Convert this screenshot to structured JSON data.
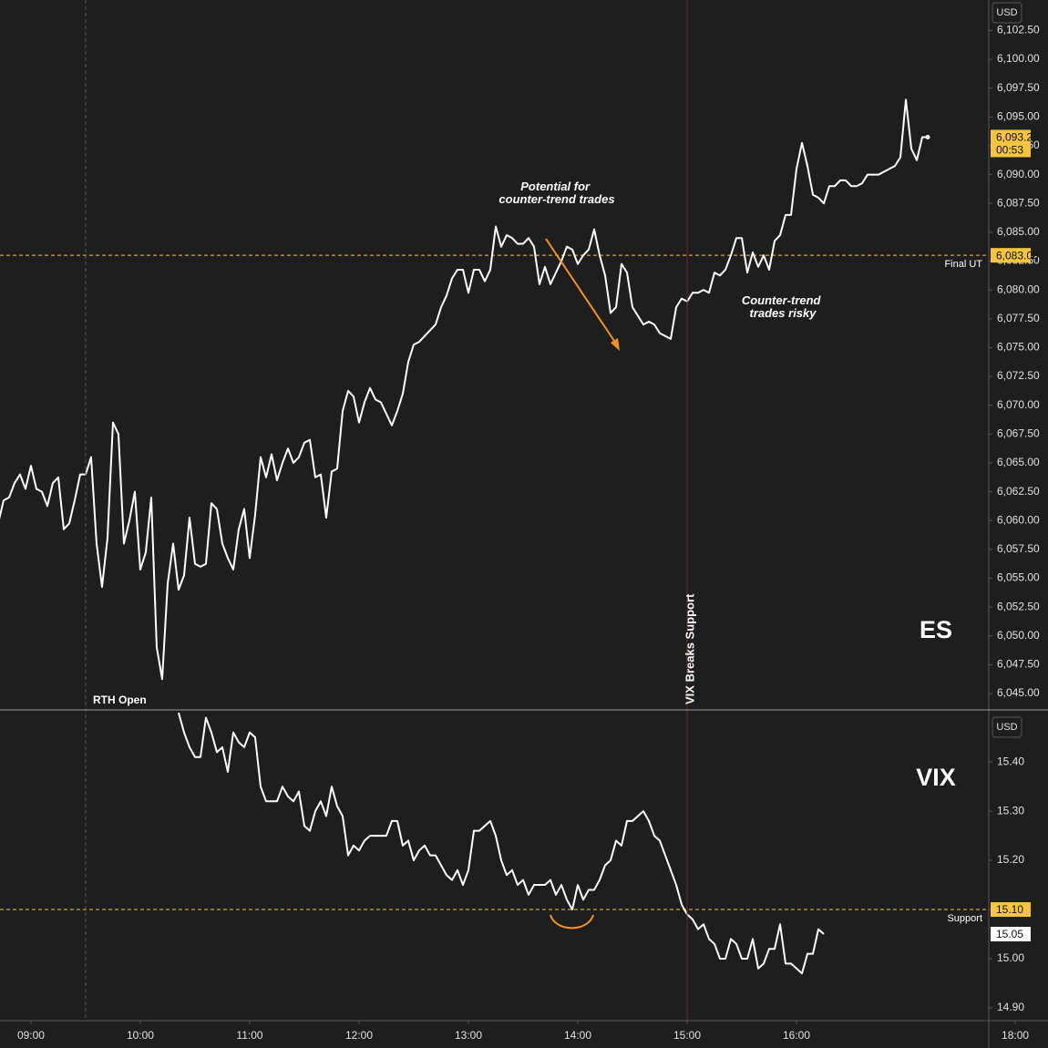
{
  "chart_data": [
    {
      "type": "line",
      "title": "ES",
      "currency": "USD",
      "x": [
        8.7,
        8.75,
        8.8,
        8.85,
        8.9,
        8.95,
        9,
        9.05,
        9.1,
        9.15,
        9.2,
        9.25,
        9.3,
        9.35,
        9.4,
        9.45,
        9.5,
        9.55,
        9.6,
        9.65,
        9.7,
        9.75,
        9.8,
        9.85,
        9.9,
        9.95,
        10,
        10.05,
        10.1,
        10.15,
        10.2,
        10.25,
        10.3,
        10.35,
        10.4,
        10.45,
        10.5,
        10.55,
        10.6,
        10.65,
        10.7,
        10.75,
        10.8,
        10.85,
        10.9,
        10.95,
        11,
        11.05,
        11.1,
        11.15,
        11.2,
        11.25,
        11.3,
        11.35,
        11.4,
        11.45,
        11.5,
        11.55,
        11.6,
        11.65,
        11.7,
        11.75,
        11.8,
        11.85,
        11.9,
        11.95,
        12,
        12.05,
        12.1,
        12.15,
        12.2,
        12.25,
        12.3,
        12.35,
        12.4,
        12.45,
        12.5,
        12.55,
        12.6,
        12.65,
        12.7,
        12.75,
        12.8,
        12.85,
        12.9,
        12.95,
        13,
        13.05,
        13.1,
        13.15,
        13.2,
        13.25,
        13.3,
        13.35,
        13.4,
        13.45,
        13.5,
        13.55,
        13.6,
        13.65,
        13.7,
        13.75,
        13.8,
        13.85,
        13.9,
        13.95,
        14,
        14.05,
        14.1,
        14.15,
        14.2,
        14.25,
        14.3,
        14.35,
        14.4,
        14.45,
        14.5,
        14.55,
        14.6,
        14.65,
        14.7,
        14.75,
        14.8,
        14.85,
        14.9,
        14.95,
        15,
        15.05,
        15.1,
        15.15,
        15.2,
        15.25,
        15.3,
        15.35,
        15.4,
        15.45,
        15.5,
        15.55,
        15.6,
        15.65,
        15.7,
        15.75,
        15.8,
        15.85,
        15.9,
        15.95,
        16,
        16.05,
        16.1,
        16.15,
        16.2,
        16.25,
        16.3,
        16.35,
        16.4,
        16.45,
        16.5,
        16.55,
        16.6,
        16.65,
        16.7,
        16.75,
        16.8,
        16.85,
        16.9,
        16.95,
        17,
        17.05,
        17.1,
        17.15,
        17.2
      ],
      "series": [
        {
          "color": "#ffffff",
          "values": [
            6059.75,
            6061.75,
            6062,
            6063.25,
            6064,
            6062.75,
            6064.75,
            6062.75,
            6062.5,
            6061.25,
            6063.25,
            6063.75,
            6059.25,
            6059.75,
            6061.75,
            6064,
            6064,
            6065.5,
            6058,
            6054.25,
            6058.5,
            6068.5,
            6067.5,
            6058,
            6060,
            6062.5,
            6055.75,
            6057.25,
            6062,
            6049,
            6046.25,
            6054.5,
            6058,
            6054,
            6055.25,
            6060.25,
            6056.25,
            6056,
            6056.25,
            6061.5,
            6061,
            6058,
            6056.75,
            6055.75,
            6059.25,
            6061,
            6056.75,
            6060.5,
            6065.5,
            6063.75,
            6065.75,
            6063.5,
            6065,
            6066.25,
            6065,
            6065.5,
            6066.75,
            6067,
            6063.75,
            6064,
            6060.25,
            6064.25,
            6064.5,
            6069.5,
            6071.25,
            6070.75,
            6068.5,
            6070.25,
            6071.5,
            6070.5,
            6070.25,
            6069.25,
            6068.25,
            6069.5,
            6071,
            6073.75,
            6075.25,
            6075.5,
            6076,
            6076.5,
            6077,
            6078.5,
            6079.5,
            6081,
            6081.75,
            6081.75,
            6079.75,
            6081.75,
            6081.75,
            6080.75,
            6081.75,
            6085.5,
            6083.75,
            6084.75,
            6084.5,
            6084,
            6084,
            6084.5,
            6083.75,
            6080.5,
            6082,
            6080.5,
            6081.5,
            6082.5,
            6083.75,
            6083.5,
            6082.25,
            6083,
            6083.5,
            6085.25,
            6083,
            6081.25,
            6078,
            6078.5,
            6082.25,
            6081.5,
            6078.5,
            6077.75,
            6077,
            6077.25,
            6077,
            6076.25,
            6076,
            6075.75,
            6078.5,
            6079.25,
            6079,
            6079.75,
            6079.75,
            6080,
            6079.75,
            6081.5,
            6081.25,
            6081.75,
            6083,
            6084.5,
            6084.5,
            6081.5,
            6083.25,
            6082,
            6083,
            6081.75,
            6084.25,
            6084.75,
            6086.5,
            6086.5,
            6090.5,
            6092.75,
            6090.75,
            6088.25,
            6088,
            6087.5,
            6089,
            6089,
            6089.5,
            6089.5,
            6089,
            6089,
            6089.25,
            6090,
            6090,
            6090,
            6090.25,
            6090.5,
            6090.75,
            6091.5,
            6096.5,
            6092.25,
            6091.25,
            6093.25,
            6093.25
          ]
        }
      ],
      "xlim": [
        8.717,
        17.758
      ],
      "ylim": [
        6043.66,
        6105.14
      ],
      "yticks": [
        {
          "value": 6045,
          "label": "6,045.00"
        },
        {
          "value": 6047.5,
          "label": "6,047.50"
        },
        {
          "value": 6050,
          "label": "6,050.00"
        },
        {
          "value": 6052.5,
          "label": "6,052.50"
        },
        {
          "value": 6055,
          "label": "6,055.00"
        },
        {
          "value": 6057.5,
          "label": "6,057.50"
        },
        {
          "value": 6060,
          "label": "6,060.00"
        },
        {
          "value": 6062.5,
          "label": "6,062.50"
        },
        {
          "value": 6065,
          "label": "6,065.00"
        },
        {
          "value": 6067.5,
          "label": "6,067.50"
        },
        {
          "value": 6070,
          "label": "6,070.00"
        },
        {
          "value": 6072.5,
          "label": "6,072.50"
        },
        {
          "value": 6075,
          "label": "6,075.00"
        },
        {
          "value": 6077.5,
          "label": "6,077.50"
        },
        {
          "value": 6080,
          "label": "6,080.00"
        },
        {
          "value": 6082.5,
          "label": "6,082.50"
        },
        {
          "value": 6085,
          "label": "6,085.00"
        },
        {
          "value": 6087.5,
          "label": "6,087.50"
        },
        {
          "value": 6090,
          "label": "6,090.00"
        },
        {
          "value": 6092.5,
          "label": "6,092.50"
        },
        {
          "value": 6095,
          "label": "6,095.00"
        },
        {
          "value": 6097.5,
          "label": "6,097.50"
        },
        {
          "value": 6100,
          "label": "6,100.00"
        },
        {
          "value": 6102.5,
          "label": "6,102.50"
        }
      ],
      "level": {
        "value": 6083,
        "label": "6,083.00",
        "name": "Final UT",
        "color": "#f5c542"
      },
      "last": {
        "value": 6093.25,
        "label": "6,093.25",
        "countdown": "00:53",
        "color": "#f5c542"
      },
      "markers": [
        {
          "x": 9.5,
          "label": "RTH Open",
          "color": "#555555"
        },
        {
          "x": 15,
          "label": "VIX Breaks Support",
          "color": "#6e2a2a"
        }
      ],
      "annotations": [
        [
          "Potential for",
          "counter-trend trades"
        ],
        [
          "Counter-trend",
          "trades risky"
        ]
      ]
    },
    {
      "type": "line",
      "title": "VIX",
      "currency": "USD",
      "x": [
        10.35,
        10.4,
        10.45,
        10.5,
        10.55,
        10.6,
        10.65,
        10.7,
        10.75,
        10.8,
        10.85,
        10.9,
        10.95,
        11,
        11.05,
        11.1,
        11.15,
        11.2,
        11.25,
        11.3,
        11.35,
        11.4,
        11.45,
        11.5,
        11.55,
        11.6,
        11.65,
        11.7,
        11.75,
        11.8,
        11.85,
        11.9,
        11.95,
        12,
        12.05,
        12.1,
        12.15,
        12.2,
        12.25,
        12.3,
        12.35,
        12.4,
        12.45,
        12.5,
        12.55,
        12.6,
        12.65,
        12.7,
        12.75,
        12.8,
        12.85,
        12.9,
        12.95,
        13,
        13.05,
        13.1,
        13.15,
        13.2,
        13.25,
        13.3,
        13.35,
        13.4,
        13.45,
        13.5,
        13.55,
        13.6,
        13.65,
        13.7,
        13.75,
        13.8,
        13.85,
        13.9,
        13.95,
        14,
        14.05,
        14.1,
        14.15,
        14.2,
        14.25,
        14.3,
        14.35,
        14.4,
        14.45,
        14.5,
        14.55,
        14.6,
        14.65,
        14.7,
        14.75,
        14.8,
        14.85,
        14.9,
        14.95,
        15,
        15.05,
        15.1,
        15.15,
        15.2,
        15.25,
        15.3,
        15.35,
        15.4,
        15.45,
        15.5,
        15.55,
        15.6,
        15.65,
        15.7,
        15.75,
        15.8,
        15.85,
        15.9,
        15.95,
        16,
        16.05,
        16.1,
        16.15,
        16.2,
        16.25
      ],
      "series": [
        {
          "color": "#ffffff",
          "values": [
            15.5,
            15.46,
            15.43,
            15.41,
            15.41,
            15.49,
            15.46,
            15.42,
            15.43,
            15.38,
            15.46,
            15.44,
            15.43,
            15.46,
            15.45,
            15.35,
            15.32,
            15.32,
            15.32,
            15.35,
            15.33,
            15.32,
            15.34,
            15.27,
            15.26,
            15.3,
            15.32,
            15.29,
            15.35,
            15.31,
            15.29,
            15.21,
            15.23,
            15.22,
            15.24,
            15.25,
            15.25,
            15.25,
            15.25,
            15.28,
            15.28,
            15.23,
            15.24,
            15.2,
            15.22,
            15.23,
            15.21,
            15.21,
            15.19,
            15.17,
            15.16,
            15.18,
            15.15,
            15.18,
            15.26,
            15.26,
            15.27,
            15.28,
            15.25,
            15.2,
            15.17,
            15.18,
            15.15,
            15.16,
            15.13,
            15.15,
            15.15,
            15.15,
            15.16,
            15.13,
            15.15,
            15.12,
            15.1,
            15.15,
            15.12,
            15.14,
            15.14,
            15.16,
            15.19,
            15.2,
            15.24,
            15.23,
            15.28,
            15.28,
            15.29,
            15.3,
            15.28,
            15.25,
            15.24,
            15.21,
            15.18,
            15.15,
            15.11,
            15.09,
            15.08,
            15.06,
            15.07,
            15.04,
            15.03,
            15,
            15,
            15.04,
            15.03,
            15,
            15,
            15.04,
            14.98,
            14.99,
            15.02,
            15.02,
            15.07,
            14.99,
            14.99,
            14.98,
            14.97,
            15.01,
            15.01,
            15.06,
            15.05
          ]
        }
      ],
      "xlim": [
        8.717,
        17.758
      ],
      "ylim": [
        14.874,
        15.504
      ],
      "yticks": [
        {
          "value": 14.9,
          "label": "14.90"
        },
        {
          "value": 15,
          "label": "15.00"
        },
        {
          "value": 15.1,
          "label": "15.10"
        },
        {
          "value": 15.2,
          "label": "15.20"
        },
        {
          "value": 15.3,
          "label": "15.30"
        },
        {
          "value": 15.4,
          "label": "15.40"
        }
      ],
      "xticks": [
        {
          "value": 9,
          "label": "09:00"
        },
        {
          "value": 10,
          "label": "10:00"
        },
        {
          "value": 11,
          "label": "11:00"
        },
        {
          "value": 12,
          "label": "12:00"
        },
        {
          "value": 13,
          "label": "13:00"
        },
        {
          "value": 14,
          "label": "14:00"
        },
        {
          "value": 15,
          "label": "15:00"
        },
        {
          "value": 16,
          "label": "16:00"
        },
        {
          "value": 18,
          "label": "18:00"
        }
      ],
      "level": {
        "value": 15.1,
        "label": "15.10",
        "name": "Support",
        "color": "#f5c542"
      },
      "last": {
        "value": 15.05,
        "label": "15.05",
        "color": "#ffffff"
      }
    }
  ]
}
